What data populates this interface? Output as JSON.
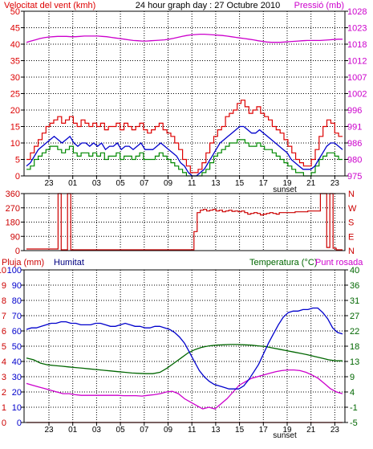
{
  "colors": {
    "background": "#ffffff",
    "frame": "#000000",
    "grid": "#000000",
    "wind": "#dd0000",
    "wind_avg": "#0000cc",
    "wind_low": "#008800",
    "pressure": "#cc00cc",
    "direction": "#cc0000",
    "rain": "#cc0000",
    "humidity": "#0000cc",
    "temperature": "#006600",
    "dewpoint": "#cc00cc",
    "humidity_label": "#000080",
    "temperature_label": "#006600"
  },
  "chart_data": [
    {
      "type": "line",
      "title": "24 hour graph day : 27 Octubre 2010",
      "left_axis_label": "Velocitat del vent (kmh)",
      "right_axis_label": "Pressió (mb)",
      "x_ticks": [
        "23",
        "01",
        "03",
        "05",
        "07",
        "09",
        "11",
        "13",
        "15",
        "17",
        "19",
        "21",
        "23"
      ],
      "x_extra_label": "sunset",
      "left_ticks": [
        0,
        5,
        10,
        15,
        20,
        25,
        30,
        35,
        40,
        45,
        50
      ],
      "left_range": [
        0,
        50
      ],
      "right_ticks": [
        975,
        980,
        986,
        991,
        996,
        1002,
        1007,
        1012,
        1018,
        1023,
        1028
      ],
      "right_range": [
        975,
        1028
      ],
      "grid": true,
      "series": [
        {
          "key": "gust",
          "values": [
            5,
            7,
            9,
            11,
            13,
            15,
            16,
            17,
            18,
            16,
            17,
            18,
            16,
            15,
            17,
            16,
            15,
            16,
            15,
            16,
            14,
            15,
            15,
            16,
            14,
            16,
            15,
            14,
            15,
            16,
            14,
            13,
            14,
            15,
            16,
            14,
            13,
            12,
            10,
            8,
            5,
            3,
            1,
            1,
            2,
            4,
            7,
            10,
            12,
            14,
            15,
            18,
            19,
            20,
            22,
            23,
            21,
            19,
            20,
            21,
            19,
            18,
            17,
            15,
            14,
            13,
            11,
            9,
            7,
            5,
            4,
            3,
            3,
            5,
            8,
            12,
            15,
            17,
            16,
            13,
            12
          ]
        },
        {
          "key": "avg",
          "values": [
            3,
            4,
            6,
            8,
            9,
            10,
            11,
            12,
            11,
            10,
            11,
            12,
            10,
            9,
            10,
            10,
            9,
            10,
            9,
            10,
            8,
            9,
            9,
            10,
            8,
            9,
            9,
            8,
            9,
            10,
            8,
            8,
            8,
            9,
            10,
            9,
            8,
            7,
            6,
            4,
            3,
            1,
            0,
            0,
            1,
            2,
            4,
            6,
            8,
            10,
            11,
            12,
            13,
            14,
            15,
            15,
            14,
            13,
            13,
            14,
            13,
            12,
            11,
            10,
            9,
            8,
            7,
            5,
            4,
            3,
            2,
            2,
            2,
            3,
            5,
            7,
            9,
            10,
            10,
            9,
            8
          ]
        },
        {
          "key": "low",
          "values": [
            2,
            3,
            5,
            6,
            7,
            8,
            9,
            9,
            8,
            7,
            8,
            9,
            7,
            6,
            7,
            7,
            6,
            7,
            6,
            7,
            5,
            6,
            6,
            7,
            5,
            6,
            6,
            5,
            6,
            7,
            5,
            5,
            5,
            6,
            7,
            6,
            5,
            4,
            3,
            2,
            1,
            0,
            0,
            0,
            0,
            1,
            2,
            4,
            6,
            7,
            8,
            9,
            10,
            10,
            11,
            11,
            10,
            9,
            9,
            10,
            9,
            8,
            8,
            7,
            6,
            5,
            4,
            3,
            2,
            1,
            1,
            0,
            0,
            1,
            3,
            5,
            6,
            7,
            7,
            6,
            5
          ]
        },
        {
          "key": "pressure",
          "values": [
            1018,
            1018.4,
            1018.8,
            1019.2,
            1019.5,
            1019.7,
            1019.8,
            1019.9,
            1019.9,
            1019.9,
            1019.8,
            1019.8,
            1019.9,
            1020,
            1020,
            1020,
            1020,
            1019.9,
            1019.8,
            1019.6,
            1019.4,
            1019.2,
            1019.0,
            1018.8,
            1018.6,
            1018.5,
            1018.4,
            1018.4,
            1018.5,
            1018.6,
            1018.7,
            1018.8,
            1019.0,
            1019.3,
            1019.6,
            1019.9,
            1020.2,
            1020.4,
            1020.5,
            1020.6,
            1020.6,
            1020.5,
            1020.4,
            1020.3,
            1020.2,
            1020.0,
            1019.8,
            1019.6,
            1019.4,
            1019.2,
            1019.0,
            1018.8,
            1018.5,
            1018.3,
            1018.1,
            1018.0,
            1018.0,
            1018.0,
            1018.1,
            1018.2,
            1018.3,
            1018.4,
            1018.5,
            1018.6,
            1018.6,
            1018.6,
            1018.6,
            1018.7,
            1018.8,
            1018.9,
            1019.0,
            1019.0
          ]
        }
      ]
    },
    {
      "type": "line",
      "left_ticks": [
        0,
        90,
        180,
        270,
        360
      ],
      "left_range": [
        0,
        360
      ],
      "right_labels": [
        "N",
        "W",
        "S",
        "E",
        "N"
      ],
      "grid": true,
      "series": [
        {
          "key": "direction",
          "values": [
            10,
            10,
            10,
            10,
            10,
            10,
            10,
            10,
            10,
            10,
            360,
            5,
            5,
            360,
            5,
            5,
            5,
            5,
            5,
            5,
            5,
            5,
            5,
            5,
            5,
            5,
            5,
            5,
            5,
            5,
            5,
            5,
            5,
            5,
            5,
            5,
            5,
            5,
            5,
            5,
            5,
            5,
            5,
            5,
            5,
            5,
            5,
            5,
            5,
            5,
            5,
            5,
            5,
            120,
            240,
            255,
            260,
            250,
            255,
            260,
            250,
            255,
            245,
            250,
            255,
            248,
            250,
            245,
            250,
            240,
            230,
            235,
            240,
            235,
            225,
            230,
            235,
            240,
            235,
            230,
            240,
            240,
            240,
            240,
            240,
            245,
            245,
            245,
            245,
            250,
            250,
            250,
            250,
            360,
            360,
            20,
            360,
            15,
            5,
            5
          ]
        }
      ]
    },
    {
      "type": "line",
      "labels": {
        "rain": "Pluja (mm)",
        "humidity": "Humitat",
        "temperature": "Temperatura (°C)",
        "dewpoint": "Punt rosada"
      },
      "x_ticks": [
        "23",
        "01",
        "03",
        "05",
        "07",
        "09",
        "11",
        "13",
        "15",
        "17",
        "19",
        "21",
        "23"
      ],
      "x_extra_label": "sunset",
      "left_outer_ticks": [
        0,
        1,
        2,
        3,
        4,
        5,
        6,
        7,
        8,
        9,
        10
      ],
      "left_outer_range": [
        0,
        10
      ],
      "left_inner_ticks": [
        0,
        10,
        20,
        30,
        40,
        50,
        60,
        70,
        80,
        90,
        100
      ],
      "left_inner_range": [
        0,
        100
      ],
      "right_ticks": [
        -5,
        -1,
        4,
        9,
        13,
        18,
        22,
        27,
        31,
        36,
        40
      ],
      "right_range": [
        -5,
        40
      ],
      "grid": true,
      "series": [
        {
          "key": "humidity",
          "values": [
            61,
            62,
            62,
            63,
            64,
            65,
            65,
            66,
            66,
            65,
            65,
            64,
            64,
            64,
            65,
            65,
            64,
            63,
            63,
            64,
            65,
            64,
            63,
            63,
            62,
            62,
            63,
            63,
            62,
            61,
            59,
            56,
            52,
            46,
            40,
            34,
            30,
            27,
            25,
            24,
            23,
            22,
            22,
            22,
            24,
            28,
            33,
            38,
            45,
            52,
            58,
            64,
            69,
            72,
            73,
            73,
            74,
            74,
            75,
            75,
            72,
            68,
            62,
            59,
            58
          ]
        },
        {
          "key": "temperature",
          "values": [
            14,
            13.5,
            12.5,
            12,
            11.8,
            11.6,
            11.4,
            11.2,
            11,
            10.8,
            10.6,
            10.4,
            10.2,
            10,
            9.8,
            9.6,
            9.5,
            9.4,
            9.4,
            9.8,
            11,
            12.5,
            14,
            15.5,
            16.5,
            17.2,
            17.6,
            17.8,
            17.9,
            18,
            18,
            17.9,
            17.8,
            17.6,
            17.4,
            17,
            16.6,
            16.2,
            15.8,
            15.4,
            15,
            14.5,
            14,
            13.5,
            13.2,
            13.2
          ]
        },
        {
          "key": "dewpoint",
          "values": [
            6.5,
            6,
            5.5,
            5,
            4.5,
            4,
            3.5,
            3.5,
            3.2,
            3,
            3,
            3,
            3,
            3,
            3,
            3,
            2.9,
            2.9,
            2.9,
            2.8,
            3,
            3.2,
            3.5,
            4,
            4.2,
            3.5,
            2,
            1,
            0,
            -1,
            -0.5,
            -1,
            0.5,
            2,
            4,
            6,
            7,
            8,
            8.5,
            9,
            9.5,
            10,
            10.3,
            10.5,
            10.5,
            10.3,
            9.8,
            9,
            8,
            6.5,
            5,
            4,
            3.5
          ]
        },
        {
          "key": "rain",
          "values": [
            0,
            0,
            0,
            0,
            0,
            0,
            0,
            0,
            0,
            0,
            0,
            0,
            0,
            0,
            0,
            0,
            0,
            0,
            0,
            0,
            0,
            0,
            0,
            0
          ]
        }
      ]
    }
  ]
}
